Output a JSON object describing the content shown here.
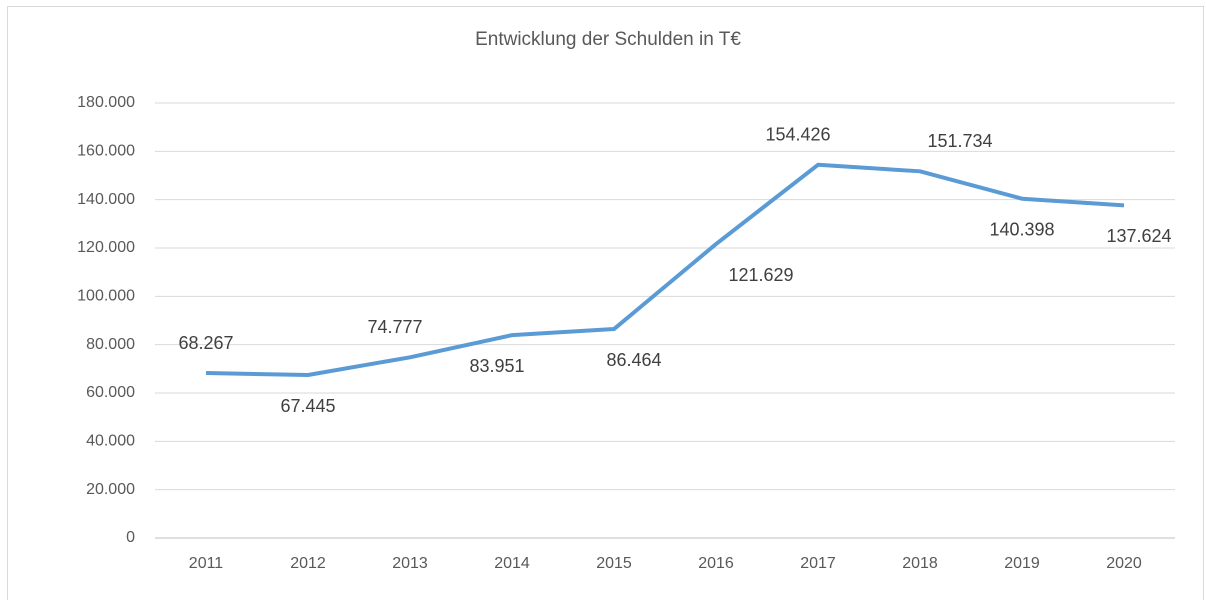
{
  "chart_data": {
    "type": "line",
    "title": "Entwicklung der Schulden in T€",
    "categories": [
      "2011",
      "2012",
      "2013",
      "2014",
      "2015",
      "2016",
      "2017",
      "2018",
      "2019",
      "2020"
    ],
    "values": [
      68267,
      67445,
      74777,
      83951,
      86464,
      121629,
      154426,
      151734,
      140398,
      137624
    ],
    "value_labels": [
      "68.267",
      "67.445",
      "74.777",
      "83.951",
      "86.464",
      "121.629",
      "154.426",
      "151.734",
      "140.398",
      "137.624"
    ],
    "color": "#5b9bd5",
    "ylim": [
      0,
      180000
    ],
    "yticks": [
      0,
      {
        "value": 20000,
        "label": "20.000"
      },
      {
        "value": 40000,
        "label": "40.000"
      },
      {
        "value": 60000,
        "label": "60.000"
      },
      {
        "value": 80000,
        "label": "80.000"
      },
      {
        "value": 100000,
        "label": "100.000"
      },
      {
        "value": 120000,
        "label": "120.000"
      },
      {
        "value": 140000,
        "label": "140.000"
      },
      {
        "value": 160000,
        "label": "160.000"
      },
      {
        "value": 180000,
        "label": "180.000"
      }
    ],
    "grid": true
  }
}
